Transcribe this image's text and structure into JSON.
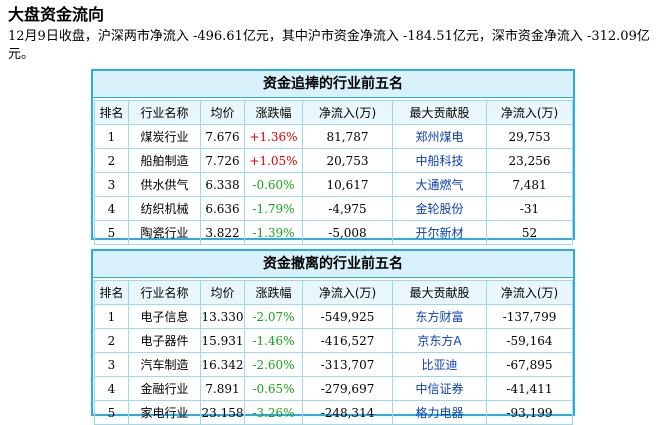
{
  "title": "大盘资金流向",
  "summary": "12月9日收盘，沪深两市净流入 -496.61亿元，其中沪市资金净流入 -184.51亿元，深市资金净流入 -312.09亿元。",
  "headers": [
    "排名",
    "行业名称",
    "均价",
    "涨跌幅",
    "净流入(万)",
    "最大贡献股",
    "净流入(万)"
  ],
  "colors": {
    "border": "#29aee3",
    "header_bg": "#d9f1fb",
    "up": "#e60000",
    "down": "#19a319",
    "link": "#0a3fb8"
  },
  "inflow_table": {
    "caption": "资金追捧的行业前五名",
    "rows": [
      {
        "rank": "1",
        "industry": "煤炭行业",
        "price": "7.676",
        "change": "+1.36%",
        "net_flow": "81,787",
        "top_stock": "郑州煤电",
        "stock_flow": "29,753"
      },
      {
        "rank": "2",
        "industry": "船舶制造",
        "price": "7.726",
        "change": "+1.05%",
        "net_flow": "20,753",
        "top_stock": "中船科技",
        "stock_flow": "23,256"
      },
      {
        "rank": "3",
        "industry": "供水供气",
        "price": "6.338",
        "change": "-0.60%",
        "net_flow": "10,617",
        "top_stock": "大通燃气",
        "stock_flow": "7,481"
      },
      {
        "rank": "4",
        "industry": "纺织机械",
        "price": "6.636",
        "change": "-1.79%",
        "net_flow": "-4,975",
        "top_stock": "金轮股份",
        "stock_flow": "-31"
      },
      {
        "rank": "5",
        "industry": "陶瓷行业",
        "price": "3.822",
        "change": "-1.39%",
        "net_flow": "-5,008",
        "top_stock": "开尔新材",
        "stock_flow": "52"
      }
    ]
  },
  "outflow_table": {
    "caption": "资金撤离的行业前五名",
    "rows": [
      {
        "rank": "1",
        "industry": "电子信息",
        "price": "13.330",
        "change": "-2.07%",
        "net_flow": "-549,925",
        "top_stock": "东方财富",
        "stock_flow": "-137,799"
      },
      {
        "rank": "2",
        "industry": "电子器件",
        "price": "15.931",
        "change": "-1.46%",
        "net_flow": "-416,527",
        "top_stock": "京东方A",
        "stock_flow": "-59,164"
      },
      {
        "rank": "3",
        "industry": "汽车制造",
        "price": "16.342",
        "change": "-2.60%",
        "net_flow": "-313,707",
        "top_stock": "比亚迪",
        "stock_flow": "-67,895"
      },
      {
        "rank": "4",
        "industry": "金融行业",
        "price": "7.891",
        "change": "-0.65%",
        "net_flow": "-279,697",
        "top_stock": "中信证券",
        "stock_flow": "-41,411"
      },
      {
        "rank": "5",
        "industry": "家电行业",
        "price": "23.158",
        "change": "-3.26%",
        "net_flow": "-248,314",
        "top_stock": "格力电器",
        "stock_flow": "-93,199"
      }
    ]
  }
}
